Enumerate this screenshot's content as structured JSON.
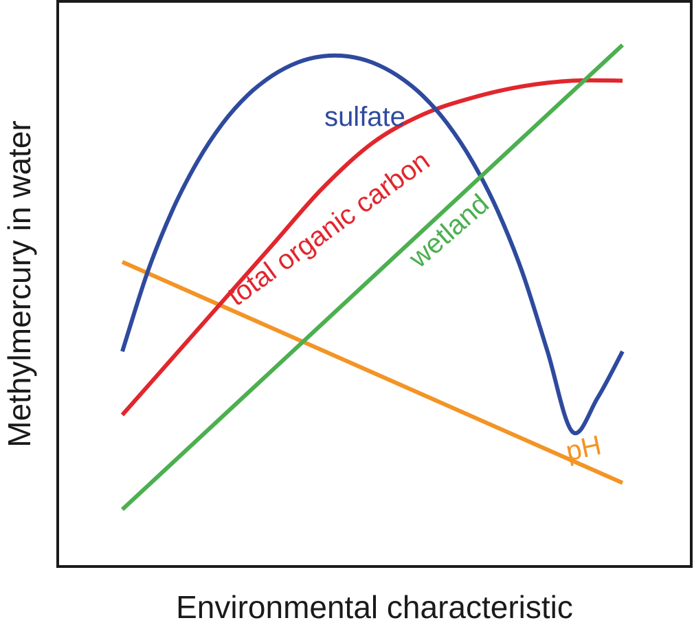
{
  "chart_data": {
    "type": "line",
    "title": "",
    "xlabel": "Environmental characteristic",
    "ylabel": "Methylmercury in water",
    "xlim": [
      0,
      1
    ],
    "ylim": [
      0,
      1
    ],
    "ticks": "none",
    "grid": false,
    "legend": "none",
    "series": [
      {
        "name": "sulfate",
        "color": "#2e4a9e",
        "x": [
          0,
          0.05,
          0.1,
          0.15,
          0.2,
          0.25,
          0.3,
          0.35,
          0.4,
          0.45,
          0.5,
          0.55,
          0.6,
          0.65,
          0.7,
          0.75,
          0.8,
          0.85,
          0.9,
          0.95,
          1
        ],
        "y": [
          0.382,
          0.521,
          0.631,
          0.717,
          0.784,
          0.834,
          0.869,
          0.892,
          0.903,
          0.903,
          0.892,
          0.869,
          0.834,
          0.784,
          0.717,
          0.631,
          0.521,
          0.382,
          0.24,
          0.3,
          0.382
        ]
      },
      {
        "name": "total organic carbon",
        "color": "#e1262d",
        "x": [
          0,
          0.1,
          0.2,
          0.3,
          0.4,
          0.5,
          0.6,
          0.7,
          0.8,
          0.9,
          1
        ],
        "y": [
          0.27,
          0.37,
          0.47,
          0.57,
          0.67,
          0.75,
          0.8,
          0.83,
          0.85,
          0.86,
          0.86
        ]
      },
      {
        "name": "wetland",
        "color": "#4caf50",
        "x": [
          0,
          1
        ],
        "y": [
          0.103,
          0.923
        ]
      },
      {
        "name": "pH",
        "color": "#f39425",
        "x": [
          0,
          1
        ],
        "y": [
          0.54,
          0.15
        ]
      }
    ],
    "annotations": [
      {
        "text": "sulfate",
        "series": "sulfate"
      },
      {
        "text": "total organic carbon",
        "series": "total organic carbon"
      },
      {
        "text": "wetland",
        "series": "wetland"
      },
      {
        "text": "pH",
        "series": "pH"
      }
    ]
  }
}
